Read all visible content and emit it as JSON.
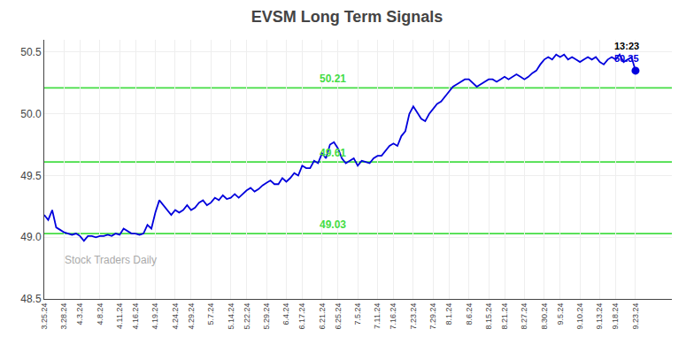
{
  "chart_data": {
    "type": "line",
    "title": "EVSM Long Term Signals",
    "color": "#0000dd",
    "categories": [
      "3.25.24",
      null,
      null,
      null,
      null,
      "3.28.24",
      null,
      null,
      null,
      "4.3.24",
      null,
      null,
      null,
      null,
      "4.8.24",
      null,
      null,
      null,
      null,
      "4.11.24",
      null,
      null,
      null,
      "4.16.24",
      null,
      null,
      null,
      null,
      "4.19.24",
      null,
      null,
      null,
      null,
      "4.24.24",
      null,
      null,
      null,
      "4.29.24",
      null,
      null,
      null,
      null,
      "5.7.24",
      null,
      null,
      null,
      null,
      "5.14.24",
      null,
      null,
      null,
      "5.22.24",
      null,
      null,
      null,
      null,
      "5.29.24",
      null,
      null,
      null,
      null,
      "6.4.24",
      null,
      null,
      null,
      "6.17.24",
      null,
      null,
      null,
      null,
      "6.21.24",
      null,
      null,
      null,
      "6.25.24",
      null,
      null,
      null,
      null,
      "7.5.24",
      null,
      null,
      null,
      null,
      "7.11.24",
      null,
      null,
      null,
      "7.16.24",
      null,
      null,
      null,
      null,
      "7.23.24",
      null,
      null,
      null,
      null,
      "7.29.24",
      null,
      null,
      null,
      "8.1.24",
      null,
      null,
      null,
      null,
      "8.6.24",
      null,
      null,
      null,
      null,
      "8.15.24",
      null,
      null,
      null,
      "8.21.24",
      null,
      null,
      null,
      null,
      "8.27.24",
      null,
      null,
      null,
      null,
      "8.30.24",
      null,
      null,
      null,
      "9.5.24",
      null,
      null,
      null,
      null,
      "9.10.24",
      null,
      null,
      null,
      null,
      "9.13.24",
      null,
      null,
      null,
      "9.18.24",
      null,
      null,
      null,
      null,
      "9.23.24"
    ],
    "values": [
      49.18,
      49.14,
      49.22,
      49.08,
      49.06,
      49.04,
      49.03,
      49.02,
      49.03,
      49.01,
      48.97,
      49.01,
      49.01,
      49.0,
      49.01,
      49.01,
      49.02,
      49.01,
      49.03,
      49.02,
      49.07,
      49.05,
      49.03,
      49.03,
      49.02,
      49.03,
      49.1,
      49.07,
      49.2,
      49.3,
      49.26,
      49.22,
      49.18,
      49.22,
      49.2,
      49.22,
      49.26,
      49.22,
      49.24,
      49.28,
      49.3,
      49.26,
      49.28,
      49.32,
      49.3,
      49.34,
      49.31,
      49.32,
      49.35,
      49.32,
      49.35,
      49.38,
      49.4,
      49.37,
      49.39,
      49.42,
      49.44,
      49.46,
      49.43,
      49.43,
      49.48,
      49.45,
      49.48,
      49.52,
      49.5,
      49.58,
      49.56,
      49.56,
      49.62,
      49.6,
      49.68,
      49.64,
      49.75,
      49.77,
      49.72,
      49.64,
      49.6,
      49.62,
      49.64,
      49.58,
      49.62,
      49.61,
      49.6,
      49.64,
      49.66,
      49.66,
      49.7,
      49.74,
      49.76,
      49.74,
      49.82,
      49.86,
      50.0,
      50.06,
      50.01,
      49.96,
      49.94,
      50.0,
      50.04,
      50.08,
      50.1,
      50.14,
      50.18,
      50.22,
      50.24,
      50.26,
      50.28,
      50.28,
      50.25,
      50.22,
      50.24,
      50.26,
      50.28,
      50.28,
      50.26,
      50.28,
      50.3,
      50.28,
      50.3,
      50.32,
      50.3,
      50.28,
      50.3,
      50.33,
      50.35,
      50.4,
      50.44,
      50.46,
      50.44,
      50.48,
      50.46,
      50.48,
      50.44,
      50.46,
      50.44,
      50.42,
      50.44,
      50.46,
      50.44,
      50.46,
      50.42,
      50.4,
      50.44,
      50.46,
      50.44,
      50.48,
      50.42,
      50.44,
      50.46,
      50.35
    ],
    "ylim": [
      48.5,
      50.6
    ],
    "yticks": [
      48.5,
      {
        "value": 49.0,
        "label": "49.0"
      },
      49.5,
      {
        "value": 50.0,
        "label": "50.0"
      },
      50.5
    ],
    "grid": true,
    "reference_lines": {
      "color": "#44dd44",
      "lines": [
        {
          "value": 49.03,
          "label": "49.03"
        },
        {
          "value": 49.61,
          "label": "49.61"
        },
        {
          "value": 50.21,
          "label": "50.21"
        }
      ]
    },
    "annotations": [
      {
        "text": "13:23",
        "color": "#000000"
      },
      {
        "text": "50.35",
        "color": "#0000dd"
      }
    ],
    "watermark": {
      "text": "Stock Traders Daily",
      "color": "#aaaaaa"
    }
  }
}
